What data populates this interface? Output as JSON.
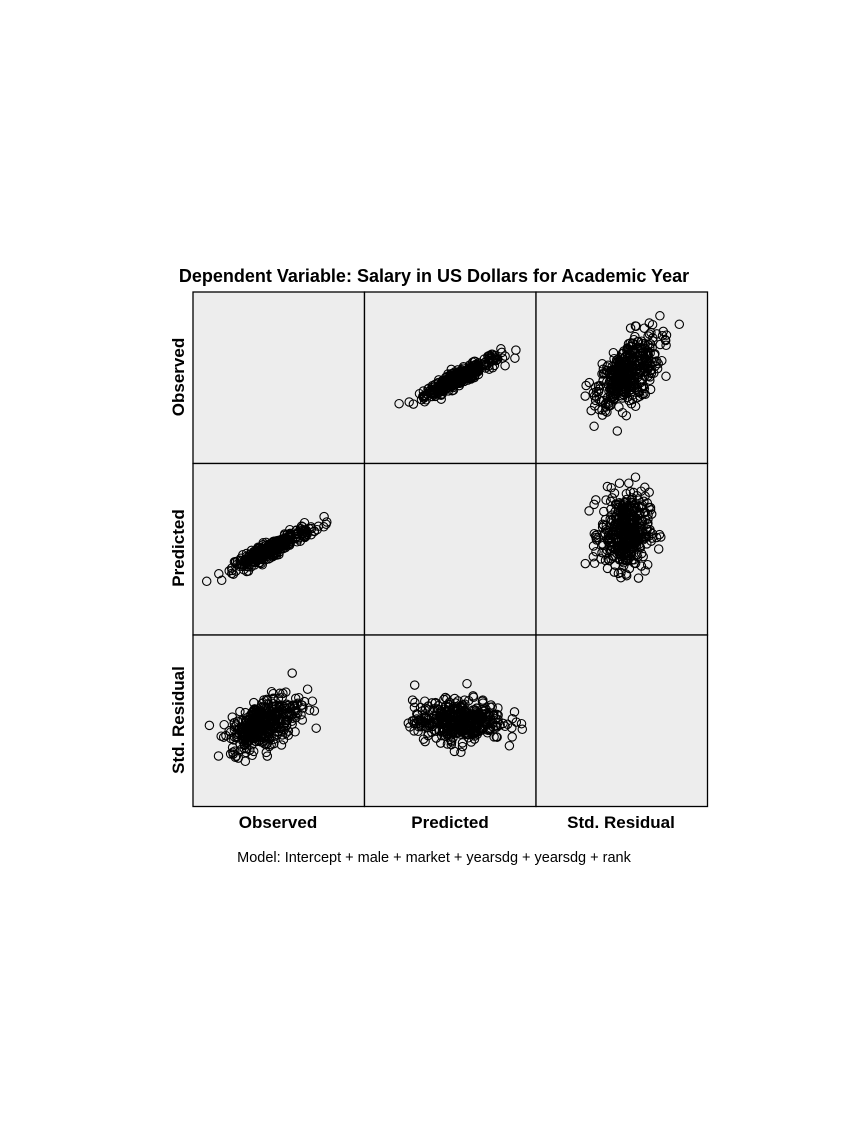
{
  "chart_data": {
    "type": "scatter",
    "subtype": "scatterplot-matrix",
    "title": "Dependent Variable: Salary in US Dollars for Academic Year",
    "footnote": "Model: Intercept + male + market + yearsdg + yearsdg + rank",
    "variables": [
      "Observed",
      "Predicted",
      "Std. Residual"
    ],
    "panel_background": "#ededed",
    "marker": "open-circle",
    "marker_color": "#000000",
    "grid": false,
    "diagonal_empty": true,
    "note": "Point clouds per off-diagonal panel, values in relative (unitless) panel fractions since axes print no ticks",
    "panels": [
      {
        "row": "Observed",
        "col": "Predicted",
        "shape": "positive-linear",
        "cx": 0.55,
        "cy": 0.5,
        "sx": 0.1,
        "sy": 0.055,
        "rho": 0.92
      },
      {
        "row": "Observed",
        "col": "Std. Residual",
        "shape": "positive-fan",
        "cx": 0.52,
        "cy": 0.48,
        "sx": 0.08,
        "sy": 0.09,
        "rho": 0.55
      },
      {
        "row": "Predicted",
        "col": "Observed",
        "shape": "positive-linear",
        "cx": 0.45,
        "cy": 0.5,
        "sx": 0.1,
        "sy": 0.055,
        "rho": 0.92
      },
      {
        "row": "Predicted",
        "col": "Std. Residual",
        "shape": "vertical-band",
        "cx": 0.52,
        "cy": 0.4,
        "sx": 0.07,
        "sy": 0.11,
        "rho": 0.05
      },
      {
        "row": "Std. Residual",
        "col": "Observed",
        "shape": "positive-fan",
        "cx": 0.4,
        "cy": 0.52,
        "sx": 0.09,
        "sy": 0.07,
        "rho": 0.55
      },
      {
        "row": "Std. Residual",
        "col": "Predicted",
        "shape": "horizontal-band",
        "cx": 0.55,
        "cy": 0.5,
        "sx": 0.13,
        "sy": 0.06,
        "rho": 0.05
      }
    ]
  }
}
